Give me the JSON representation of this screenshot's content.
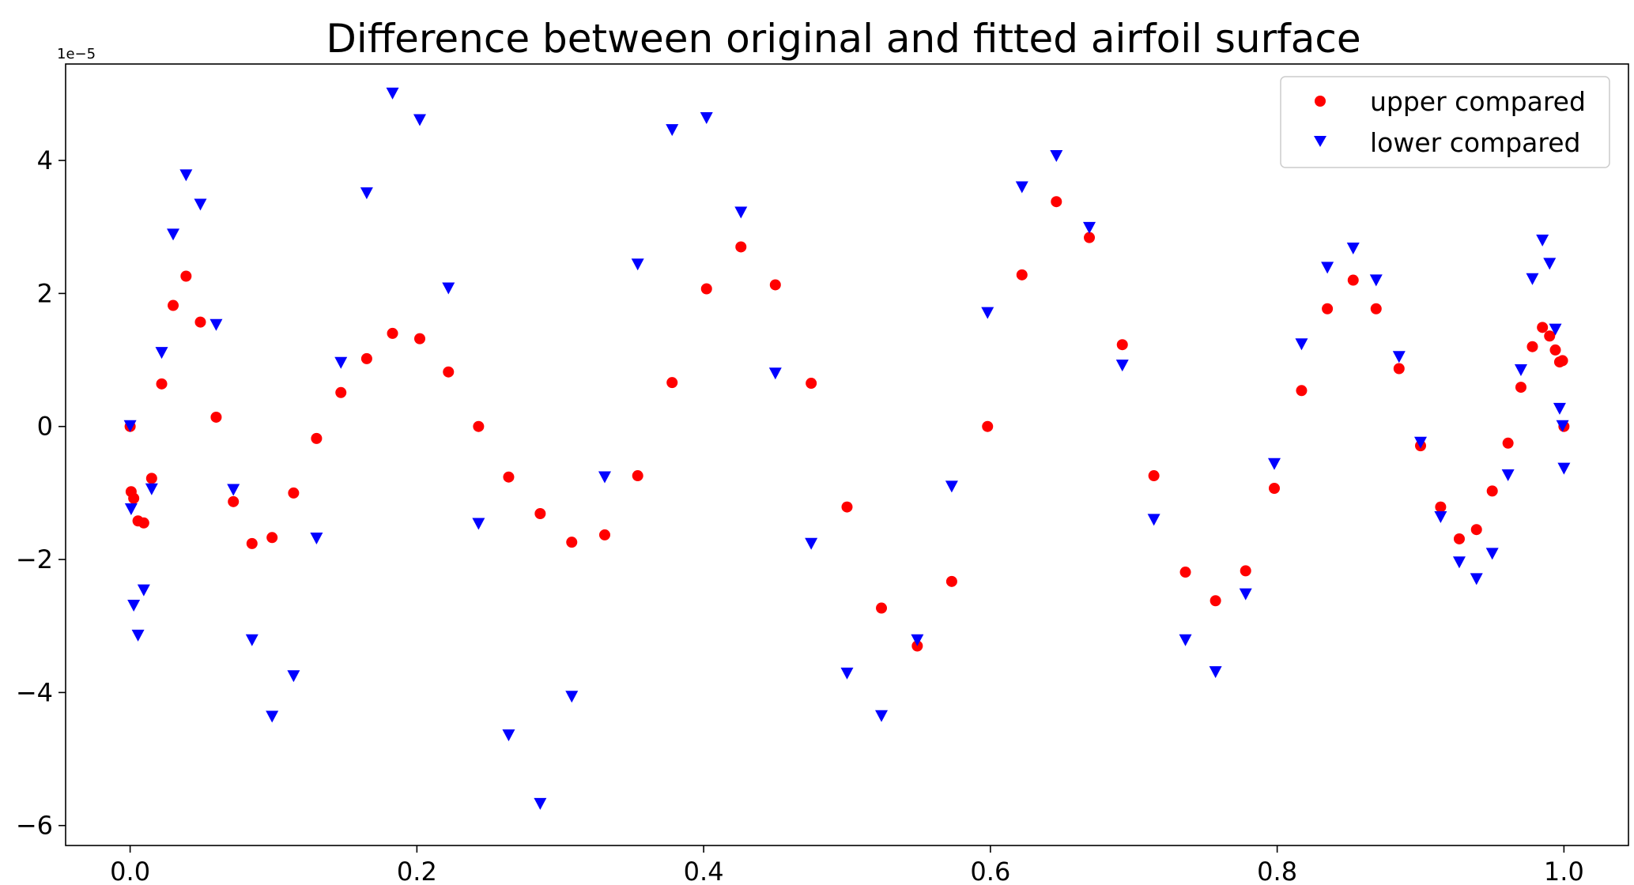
{
  "chart_data": {
    "type": "scatter",
    "title": "Difference between original and fitted airfoil surface",
    "xlabel": "",
    "ylabel": "",
    "y_offset_label": "1e−5",
    "xlim": [
      -0.045,
      1.045
    ],
    "ylim": [
      -6.3,
      5.45
    ],
    "x_ticks": [
      0.0,
      0.2,
      0.4,
      0.6,
      0.8,
      1.0
    ],
    "x_tick_labels": [
      "0.0",
      "0.2",
      "0.4",
      "0.6",
      "0.8",
      "1.0"
    ],
    "y_ticks": [
      -6,
      -4,
      -2,
      0,
      2,
      4
    ],
    "y_tick_labels": [
      "−6",
      "−4",
      "−2",
      "0",
      "2",
      "4"
    ],
    "grid": false,
    "legend_position": "top-right",
    "series": [
      {
        "name": "upper compared",
        "marker": "circle",
        "color": "#ff0000",
        "x": [
          0.0,
          0.0007,
          0.0025,
          0.0055,
          0.0095,
          0.015,
          0.022,
          0.03,
          0.039,
          0.049,
          0.06,
          0.072,
          0.085,
          0.099,
          0.114,
          0.13,
          0.147,
          0.165,
          0.183,
          0.202,
          0.222,
          0.243,
          0.264,
          0.286,
          0.308,
          0.331,
          0.354,
          0.378,
          0.402,
          0.426,
          0.45,
          0.475,
          0.5,
          0.524,
          0.549,
          0.573,
          0.598,
          0.622,
          0.646,
          0.669,
          0.692,
          0.714,
          0.736,
          0.757,
          0.778,
          0.798,
          0.817,
          0.835,
          0.853,
          0.869,
          0.885,
          0.9,
          0.914,
          0.927,
          0.939,
          0.95,
          0.961,
          0.97,
          0.978,
          0.985,
          0.99,
          0.994,
          0.997,
          0.999,
          1.0
        ],
        "values": [
          0.0,
          -0.98,
          -1.08,
          -1.42,
          -1.45,
          -0.78,
          0.64,
          1.82,
          2.26,
          1.57,
          0.14,
          -1.13,
          -1.76,
          -1.67,
          -1.0,
          -0.18,
          0.51,
          1.02,
          1.4,
          1.32,
          0.82,
          0.0,
          -0.76,
          -1.31,
          -1.74,
          -1.63,
          -0.74,
          0.66,
          2.07,
          2.7,
          2.13,
          0.65,
          -1.21,
          -2.73,
          -3.3,
          -2.33,
          0.0,
          2.28,
          3.38,
          2.84,
          1.23,
          -0.74,
          -2.19,
          -2.62,
          -2.17,
          -0.93,
          0.54,
          1.77,
          2.2,
          1.77,
          0.87,
          -0.29,
          -1.21,
          -1.69,
          -1.55,
          -0.97,
          -0.25,
          0.59,
          1.2,
          1.49,
          1.36,
          1.15,
          0.97,
          0.99,
          0.0
        ]
      },
      {
        "name": "lower compared",
        "marker": "triangle-down",
        "color": "#0000ff",
        "x": [
          0.0,
          0.0007,
          0.0025,
          0.0055,
          0.0095,
          0.015,
          0.022,
          0.03,
          0.039,
          0.049,
          0.06,
          0.072,
          0.085,
          0.099,
          0.114,
          0.13,
          0.147,
          0.165,
          0.183,
          0.202,
          0.222,
          0.243,
          0.264,
          0.286,
          0.308,
          0.331,
          0.354,
          0.378,
          0.402,
          0.426,
          0.45,
          0.475,
          0.5,
          0.524,
          0.549,
          0.573,
          0.598,
          0.622,
          0.646,
          0.669,
          0.692,
          0.714,
          0.736,
          0.757,
          0.778,
          0.798,
          0.817,
          0.835,
          0.853,
          0.869,
          0.885,
          0.9,
          0.914,
          0.927,
          0.939,
          0.95,
          0.961,
          0.97,
          0.978,
          0.985,
          0.99,
          0.994,
          0.997,
          0.999,
          1.0
        ],
        "values": [
          0.0,
          -1.25,
          -2.7,
          -3.15,
          -2.47,
          -0.95,
          1.1,
          2.88,
          3.77,
          3.33,
          1.52,
          -0.96,
          -3.22,
          -4.37,
          -3.76,
          -1.69,
          0.95,
          3.5,
          5.0,
          4.6,
          2.07,
          -1.47,
          -4.65,
          -5.68,
          -4.07,
          -0.77,
          2.43,
          4.45,
          4.63,
          3.21,
          0.79,
          -1.77,
          -3.72,
          -4.36,
          -3.22,
          -0.91,
          1.7,
          3.59,
          4.06,
          2.98,
          0.91,
          -1.41,
          -3.22,
          -3.7,
          -2.53,
          -0.57,
          1.23,
          2.38,
          2.67,
          2.19,
          1.04,
          -0.25,
          -1.37,
          -2.05,
          -2.3,
          -1.92,
          -0.74,
          0.84,
          2.21,
          2.79,
          2.44,
          1.45,
          0.26,
          0.0,
          -0.64
        ]
      }
    ]
  }
}
